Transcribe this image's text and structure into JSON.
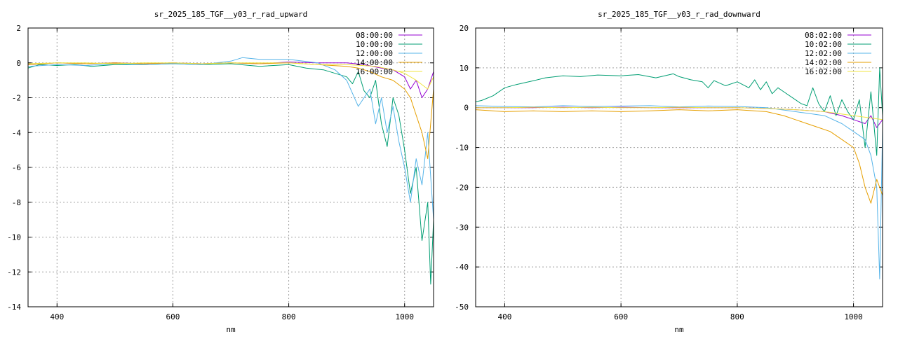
{
  "chart_data": [
    {
      "type": "line",
      "title": "sr_2025_185_TGF__y03_r_rad_upward",
      "xlabel": "nm",
      "ylabel": "",
      "xlim": [
        350,
        1050
      ],
      "ylim": [
        -14,
        2
      ],
      "xticks": [
        400,
        600,
        800,
        1000
      ],
      "xtick_labels": [
        "400",
        "600",
        "800",
        "1000"
      ],
      "yticks": [
        -14,
        -12,
        -10,
        -8,
        -6,
        -4,
        -2,
        0,
        2
      ],
      "ytick_labels": [
        "-14",
        "-12",
        "-10",
        "-8",
        "-6",
        "-4",
        "-2",
        "0",
        "2"
      ],
      "grid": true,
      "legend_position": "top-right",
      "series": [
        {
          "name": "08:00:00",
          "color": "#9400d3",
          "x": [
            350,
            400,
            450,
            500,
            550,
            600,
            650,
            700,
            750,
            800,
            850,
            900,
            930,
            960,
            980,
            1000,
            1010,
            1020,
            1030,
            1040,
            1050
          ],
          "y": [
            -0.1,
            0.0,
            -0.05,
            0.0,
            -0.05,
            0.0,
            -0.05,
            0.0,
            -0.05,
            0.05,
            0.0,
            0.0,
            -0.1,
            -0.3,
            -0.4,
            -0.8,
            -1.5,
            -1.0,
            -2.0,
            -1.5,
            -0.5
          ]
        },
        {
          "name": "10:00:00",
          "color": "#009e73",
          "x": [
            350,
            370,
            400,
            430,
            460,
            500,
            550,
            600,
            650,
            700,
            750,
            800,
            830,
            860,
            880,
            900,
            910,
            920,
            930,
            940,
            950,
            960,
            970,
            980,
            990,
            1000,
            1010,
            1020,
            1030,
            1040,
            1045,
            1050
          ],
          "y": [
            -0.3,
            -0.1,
            -0.15,
            -0.1,
            -0.2,
            -0.1,
            -0.1,
            -0.05,
            -0.1,
            -0.05,
            -0.2,
            -0.1,
            -0.3,
            -0.4,
            -0.6,
            -0.8,
            -1.2,
            -0.5,
            -1.6,
            -2.0,
            -1.0,
            -3.5,
            -4.8,
            -2.0,
            -3.0,
            -5.0,
            -7.5,
            -6.0,
            -10.2,
            -8.0,
            -12.7,
            -9.0
          ]
        },
        {
          "name": "12:00:00",
          "color": "#56b4e9",
          "x": [
            350,
            400,
            450,
            500,
            550,
            600,
            650,
            700,
            720,
            750,
            800,
            850,
            880,
            900,
            920,
            940,
            950,
            960,
            970,
            980,
            990,
            1000,
            1010,
            1020,
            1030,
            1040,
            1050
          ],
          "y": [
            -0.2,
            -0.1,
            -0.15,
            -0.05,
            -0.1,
            -0.05,
            -0.1,
            0.1,
            0.3,
            0.2,
            0.2,
            0.0,
            -0.4,
            -1.0,
            -2.5,
            -1.5,
            -3.5,
            -2.0,
            -4.0,
            -2.5,
            -4.5,
            -6.0,
            -8.0,
            -5.5,
            -7.0,
            -4.0,
            -9.0
          ]
        },
        {
          "name": "14:00:00",
          "color": "#e69f00",
          "x": [
            350,
            400,
            450,
            500,
            550,
            600,
            650,
            700,
            750,
            800,
            850,
            900,
            920,
            940,
            960,
            980,
            1000,
            1010,
            1020,
            1030,
            1040,
            1050
          ],
          "y": [
            -0.1,
            0.0,
            -0.05,
            0.0,
            -0.05,
            0.0,
            -0.05,
            0.0,
            -0.05,
            0.0,
            -0.1,
            -0.2,
            -0.3,
            -0.5,
            -0.8,
            -1.0,
            -1.5,
            -2.0,
            -3.0,
            -4.0,
            -5.5,
            -1.5
          ]
        },
        {
          "name": "16:00:00",
          "color": "#f0e442",
          "x": [
            350,
            400,
            450,
            500,
            550,
            600,
            650,
            700,
            750,
            800,
            850,
            900,
            950,
            980,
            1000,
            1020,
            1040,
            1050
          ],
          "y": [
            -0.05,
            0.0,
            0.0,
            -0.05,
            0.0,
            0.0,
            -0.05,
            0.0,
            0.0,
            0.0,
            -0.1,
            -0.1,
            -0.2,
            -0.4,
            -0.6,
            -1.0,
            -1.5,
            -0.8
          ]
        }
      ]
    },
    {
      "type": "line",
      "title": "sr_2025_185_TGF__y03_r_rad_downward",
      "xlabel": "nm",
      "ylabel": "",
      "xlim": [
        350,
        1050
      ],
      "ylim": [
        -50,
        20
      ],
      "xticks": [
        400,
        600,
        800,
        1000
      ],
      "xtick_labels": [
        "400",
        "600",
        "800",
        "1000"
      ],
      "yticks": [
        -50,
        -40,
        -30,
        -20,
        -10,
        0,
        10,
        20
      ],
      "ytick_labels": [
        "-50",
        "-40",
        "-30",
        "-20",
        "-10",
        "0",
        "10",
        "20"
      ],
      "grid": true,
      "legend_position": "top-right",
      "series": [
        {
          "name": "08:02:00",
          "color": "#9400d3",
          "x": [
            350,
            400,
            450,
            500,
            550,
            600,
            650,
            700,
            750,
            800,
            850,
            900,
            950,
            980,
            1000,
            1020,
            1030,
            1040,
            1050
          ],
          "y": [
            0.0,
            0.0,
            0.0,
            0.1,
            0.0,
            0.1,
            0.0,
            0.0,
            0.0,
            0.0,
            -0.2,
            -0.5,
            -1.0,
            -2.0,
            -3.0,
            -4.0,
            -2.0,
            -5.0,
            -3.0
          ]
        },
        {
          "name": "10:02:00",
          "color": "#009e73",
          "x": [
            350,
            360,
            380,
            400,
            420,
            450,
            470,
            500,
            530,
            560,
            600,
            630,
            660,
            690,
            700,
            720,
            740,
            750,
            760,
            780,
            800,
            820,
            830,
            840,
            850,
            860,
            870,
            880,
            900,
            910,
            920,
            930,
            940,
            950,
            960,
            970,
            980,
            990,
            1000,
            1010,
            1020,
            1030,
            1040,
            1045,
            1050
          ],
          "y": [
            1.5,
            1.8,
            3.0,
            5.0,
            5.8,
            6.8,
            7.5,
            8.0,
            7.8,
            8.2,
            8.0,
            8.3,
            7.5,
            8.5,
            7.8,
            7.0,
            6.5,
            5.0,
            6.8,
            5.5,
            6.5,
            5.0,
            7.0,
            4.5,
            6.5,
            3.5,
            5.0,
            4.0,
            2.0,
            1.0,
            0.5,
            5.0,
            1.0,
            -1.0,
            3.0,
            -2.0,
            2.0,
            -1.0,
            -3.0,
            2.0,
            -10.0,
            4.0,
            -12.0,
            10.0,
            -2.0
          ]
        },
        {
          "name": "12:02:00",
          "color": "#56b4e9",
          "x": [
            350,
            400,
            450,
            500,
            550,
            600,
            650,
            700,
            750,
            800,
            850,
            900,
            950,
            980,
            1000,
            1020,
            1030,
            1040,
            1045,
            1050
          ],
          "y": [
            0.5,
            0.3,
            0.2,
            0.5,
            0.3,
            0.4,
            0.5,
            0.2,
            0.4,
            0.3,
            0.0,
            -1.0,
            -2.0,
            -4.0,
            -6.0,
            -8.0,
            -12.0,
            -20.0,
            -43.0,
            -5.0
          ]
        },
        {
          "name": "14:02:00",
          "color": "#e69f00",
          "x": [
            350,
            400,
            450,
            500,
            550,
            600,
            650,
            700,
            750,
            800,
            850,
            880,
            900,
            920,
            940,
            960,
            980,
            1000,
            1010,
            1020,
            1030,
            1040,
            1050
          ],
          "y": [
            -0.5,
            -1.0,
            -0.8,
            -1.0,
            -0.8,
            -1.0,
            -0.8,
            -0.5,
            -0.8,
            -0.5,
            -1.0,
            -2.0,
            -3.0,
            -4.0,
            -5.0,
            -6.0,
            -8.0,
            -10.0,
            -14.0,
            -20.0,
            -24.0,
            -18.0,
            -22.0
          ]
        },
        {
          "name": "16:02:00",
          "color": "#f0e442",
          "x": [
            350,
            400,
            450,
            500,
            550,
            600,
            650,
            700,
            750,
            800,
            850,
            900,
            950,
            1000,
            1050
          ],
          "y": [
            0.0,
            0.0,
            0.1,
            0.0,
            0.1,
            0.0,
            0.0,
            0.1,
            0.0,
            0.0,
            -0.2,
            -0.5,
            -1.0,
            -2.0,
            -3.0
          ]
        }
      ]
    }
  ]
}
